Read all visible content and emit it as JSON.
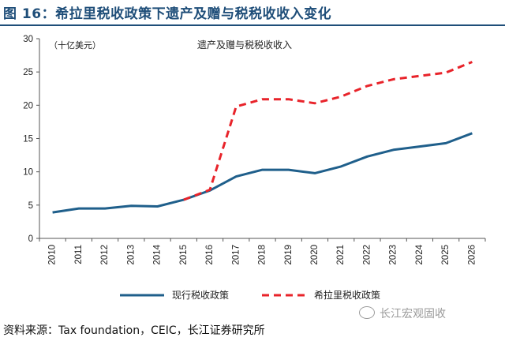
{
  "figure": {
    "title": "图 16：希拉里税收政策下遗产及赠与税税收收入变化",
    "source": "资料来源：Tax foundation，CEIC，长江证券研究所",
    "watermark": "长江宏观固收"
  },
  "chart_data": {
    "type": "line",
    "title": "遗产及赠与税税收收入",
    "unit_label": "（十亿美元）",
    "xlabel": "",
    "ylabel": "",
    "categories": [
      "2010",
      "2011",
      "2012",
      "2013",
      "2014",
      "2015",
      "2016",
      "2017",
      "2018",
      "2019",
      "2020",
      "2021",
      "2022",
      "2023",
      "2024",
      "2025",
      "2026"
    ],
    "ylim": [
      0,
      30
    ],
    "yticks": [
      0,
      5,
      10,
      15,
      20,
      25,
      30
    ],
    "legend_position": "bottom",
    "series": [
      {
        "name": "现行税收政策",
        "color": "#1f5f8b",
        "dash": "solid",
        "values": [
          3.9,
          4.5,
          4.5,
          4.9,
          4.8,
          5.8,
          7.2,
          9.3,
          10.3,
          10.3,
          9.8,
          10.8,
          12.3,
          13.3,
          13.8,
          14.3,
          15.8
        ]
      },
      {
        "name": "希拉里税收政策",
        "color": "#e8232a",
        "dash": "dashed",
        "values": [
          null,
          null,
          null,
          null,
          null,
          5.8,
          7.3,
          19.8,
          20.9,
          20.9,
          20.3,
          21.3,
          22.9,
          23.9,
          24.4,
          24.9,
          26.5
        ]
      }
    ]
  }
}
